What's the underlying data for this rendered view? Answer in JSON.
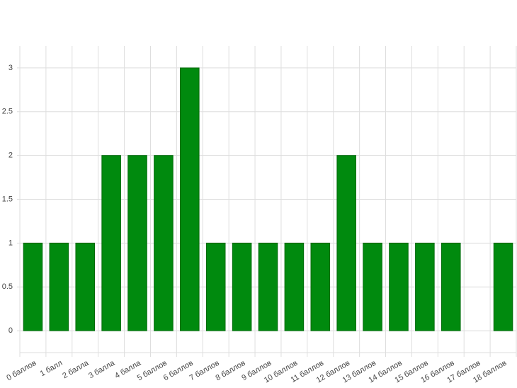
{
  "chart_data": {
    "type": "bar",
    "categories": [
      "0 баллов",
      "1 балл",
      "2 балла",
      "3 балла",
      "4 балла",
      "5 баллов",
      "6 баллов",
      "7 баллов",
      "8 баллов",
      "9 баллов",
      "10 баллов",
      "11 баллов",
      "12 баллов",
      "13 баллов",
      "14 баллов",
      "15 баллов",
      "16 баллов",
      "17 баллов",
      "18 баллов"
    ],
    "values": [
      1,
      1,
      1,
      2,
      2,
      2,
      3,
      1,
      1,
      1,
      1,
      1,
      2,
      1,
      1,
      1,
      1,
      0,
      1
    ],
    "color": "#008a0e",
    "ylim": [
      -0.25,
      3.25
    ],
    "yticks": [
      0,
      0.5,
      1,
      1.5,
      2,
      2.5,
      3
    ],
    "grid": true
  }
}
